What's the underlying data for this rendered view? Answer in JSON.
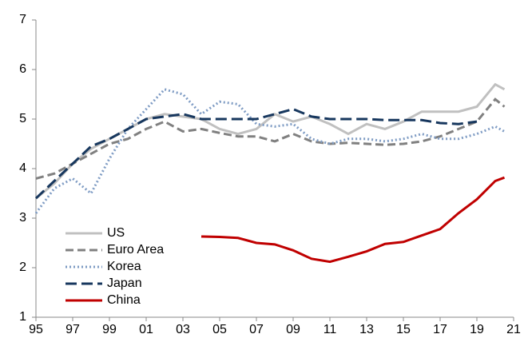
{
  "chart_data": {
    "type": "line",
    "x": [
      1995,
      1996,
      1997,
      1998,
      1999,
      2000,
      2001,
      2002,
      2003,
      2004,
      2005,
      2006,
      2007,
      2008,
      2009,
      2010,
      2011,
      2012,
      2013,
      2014,
      2015,
      2016,
      2017,
      2018,
      2019,
      2020,
      2020.5
    ],
    "series": [
      {
        "name": "US",
        "color": "#c0c0c0",
        "dash": "solid",
        "values": [
          3.4,
          3.7,
          4.1,
          4.4,
          4.6,
          4.8,
          5.0,
          5.1,
          5.05,
          5.0,
          4.8,
          4.7,
          4.8,
          5.1,
          4.95,
          5.05,
          4.9,
          4.7,
          4.9,
          4.8,
          4.95,
          5.15,
          5.15,
          5.15,
          5.25,
          5.7,
          5.6
        ]
      },
      {
        "name": "Euro Area",
        "color": "#808080",
        "dash": "dash",
        "values": [
          3.8,
          3.9,
          4.1,
          4.3,
          4.5,
          4.6,
          4.8,
          4.95,
          4.75,
          4.8,
          4.72,
          4.65,
          4.65,
          4.55,
          4.7,
          4.55,
          4.5,
          4.52,
          4.5,
          4.48,
          4.5,
          4.55,
          4.65,
          4.8,
          4.95,
          5.4,
          5.25
        ]
      },
      {
        "name": "Korea",
        "color": "#7f9cc4",
        "dash": "dot",
        "values": [
          3.1,
          3.6,
          3.8,
          3.5,
          4.2,
          4.8,
          5.2,
          5.6,
          5.5,
          5.1,
          5.35,
          5.3,
          4.9,
          4.85,
          4.9,
          4.6,
          4.5,
          4.6,
          4.6,
          4.55,
          4.6,
          4.7,
          4.6,
          4.6,
          4.7,
          4.85,
          4.75
        ]
      },
      {
        "name": "Japan",
        "color": "#17375e",
        "dash": "longdash",
        "values": [
          3.4,
          3.75,
          4.1,
          4.45,
          4.6,
          4.8,
          5.0,
          5.05,
          5.1,
          5.0,
          5.0,
          5.0,
          5.0,
          5.1,
          5.2,
          5.05,
          5.0,
          5.0,
          5.0,
          4.98,
          4.98,
          4.98,
          4.92,
          4.9,
          4.95,
          null,
          null
        ]
      },
      {
        "name": "China",
        "color": "#c00000",
        "dash": "solid",
        "values": [
          null,
          null,
          null,
          null,
          null,
          null,
          null,
          null,
          null,
          2.63,
          2.62,
          2.6,
          2.5,
          2.47,
          2.35,
          2.18,
          2.12,
          2.22,
          2.33,
          2.48,
          2.52,
          2.65,
          2.78,
          3.1,
          3.38,
          3.75,
          3.82
        ]
      }
    ],
    "xlim": [
      1995,
      2021
    ],
    "xticks": [
      {
        "value": 1995,
        "label": "95"
      },
      {
        "value": 1997,
        "label": "97"
      },
      {
        "value": 1999,
        "label": "99"
      },
      {
        "value": 2001,
        "label": "01"
      },
      {
        "value": 2003,
        "label": "03"
      },
      {
        "value": 2005,
        "label": "05"
      },
      {
        "value": 2007,
        "label": "07"
      },
      {
        "value": 2009,
        "label": "09"
      },
      {
        "value": 2011,
        "label": "11"
      },
      {
        "value": 2013,
        "label": "13"
      },
      {
        "value": 2015,
        "label": "15"
      },
      {
        "value": 2017,
        "label": "17"
      },
      {
        "value": 2019,
        "label": "19"
      },
      {
        "value": 2021,
        "label": "21"
      }
    ],
    "ylim": [
      1,
      7
    ],
    "yticks": [
      1,
      2,
      3,
      4,
      5,
      6,
      7
    ],
    "legend": "lower left"
  }
}
